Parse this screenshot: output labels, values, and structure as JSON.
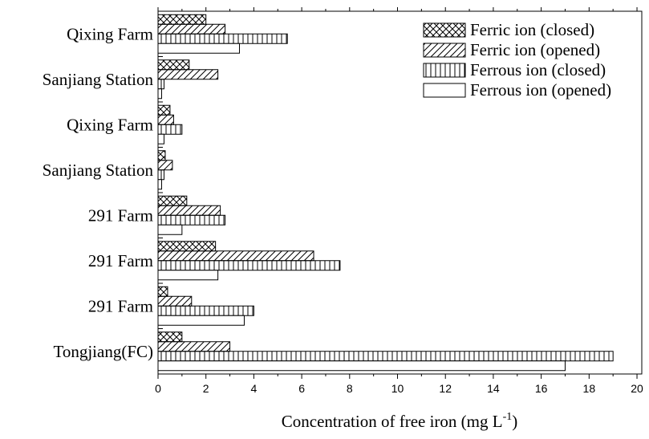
{
  "chart_data": {
    "type": "hbar",
    "categories": [
      "Qixing Farm",
      "Sanjiang Station",
      "Qixing Farm",
      "Sanjiang Station",
      "291 Farm",
      "291 Farm",
      "291 Farm",
      "Tongjiang(FC)"
    ],
    "series": [
      {
        "name": "Ferric ion (closed)",
        "color": "#000000",
        "pattern": "crosshatch",
        "values": [
          2.0,
          1.3,
          0.5,
          0.3,
          1.2,
          2.4,
          0.4,
          1.0
        ]
      },
      {
        "name": "Ferric ion (opened)",
        "color": "#000000",
        "pattern": "diagonal",
        "values": [
          2.8,
          2.5,
          0.65,
          0.6,
          2.6,
          6.5,
          1.4,
          3.0
        ]
      },
      {
        "name": "Ferrous ion (closed)",
        "color": "#000000",
        "pattern": "vertical",
        "values": [
          5.4,
          0.25,
          1.0,
          0.25,
          2.8,
          7.6,
          4.0,
          19.0
        ]
      },
      {
        "name": "Ferrous ion (opened)",
        "color": "#000000",
        "pattern": "none",
        "values": [
          3.4,
          0.15,
          0.25,
          0.15,
          1.0,
          2.5,
          3.6,
          17.0
        ]
      }
    ],
    "xlabel": [
      "Concentration of free iron (mg L",
      "-1",
      ")"
    ],
    "xlim": [
      0,
      20.2
    ],
    "xticks": [
      0,
      2,
      4,
      6,
      8,
      10,
      12,
      14,
      16,
      18,
      20
    ],
    "legend": "upper right"
  }
}
